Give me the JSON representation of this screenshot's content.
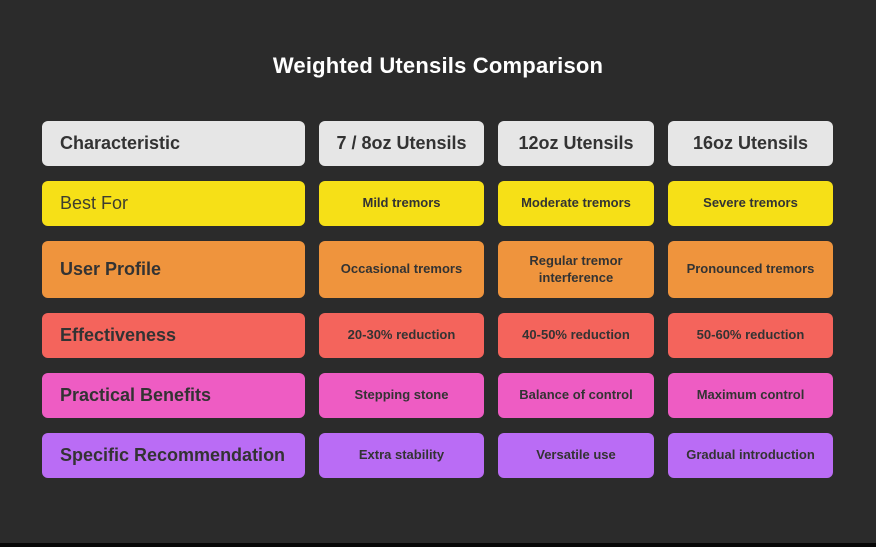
{
  "title": "Weighted Utensils Comparison",
  "colors": {
    "background": "#2b2b2b",
    "header_bg": "#e6e6e6",
    "title_text": "#ffffff",
    "cell_text": "#333333",
    "bottom_bar": "#070707"
  },
  "chart_data": {
    "type": "table",
    "title": "Weighted Utensils Comparison",
    "columns": [
      "Characteristic",
      "7 / 8oz Utensils",
      "12oz Utensils",
      "16oz Utensils"
    ],
    "rows": [
      [
        "Best For",
        "Mild tremors",
        "Moderate tremors",
        "Severe tremors"
      ],
      [
        "User Profile",
        "Occasional tremors",
        "Regular tremor interference",
        "Pronounced tremors"
      ],
      [
        "Effectiveness",
        "20-30% reduction",
        "40-50% reduction",
        "50-60% reduction"
      ],
      [
        "Practical Benefits",
        "Stepping stone",
        "Balance of control",
        "Maximum control"
      ],
      [
        "Specific Recommendation",
        "Extra stability",
        "Versatile use",
        "Gradual introduction"
      ]
    ],
    "row_colors": [
      "#f6e017",
      "#ef943d",
      "#f4645c",
      "#ee5cc3",
      "#ba6cf5"
    ],
    "header_color": "#e6e6e6",
    "layout": "first column left-aligned row labels, three value columns centered, grid off, dark background"
  }
}
